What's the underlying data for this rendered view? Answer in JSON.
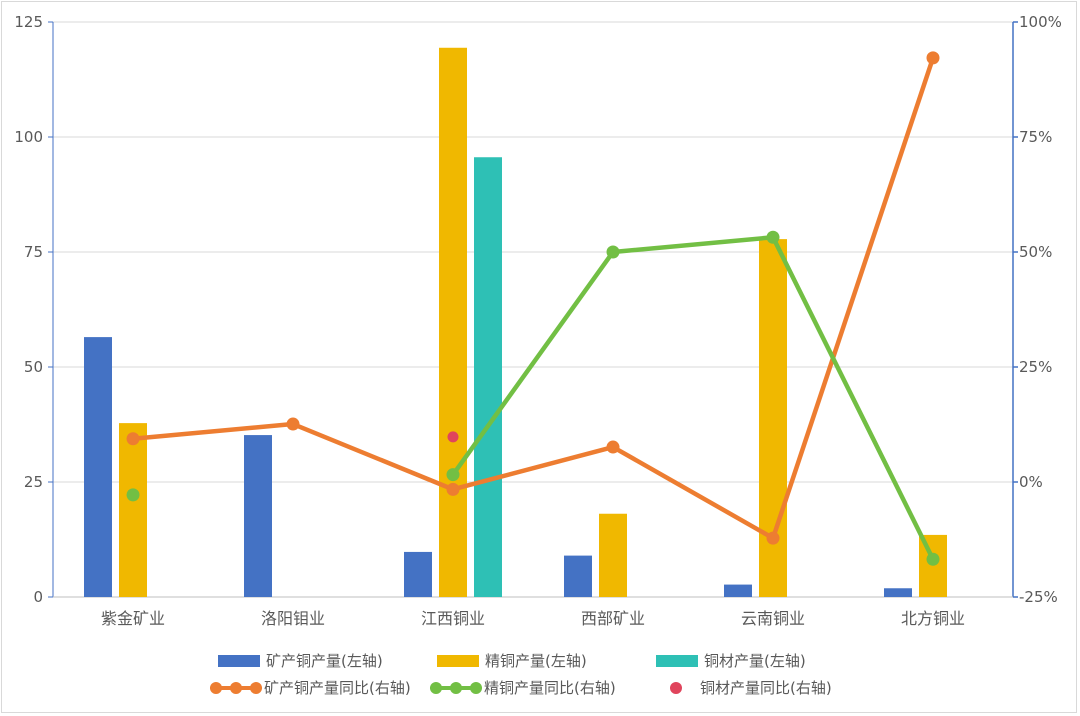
{
  "chart_data": {
    "type": "bar",
    "categories": [
      "紫金矿业",
      "洛阳钼业",
      "江西铜业",
      "西部矿业",
      "云南铜业",
      "北方铜业"
    ],
    "left_axis": {
      "ylim": [
        0,
        125
      ],
      "ticks": [
        "0",
        "25",
        "50",
        "75",
        "100",
        "125"
      ]
    },
    "right_axis": {
      "ylim": [
        -0.25,
        1.0
      ],
      "ticks": [
        "-25%",
        "0%",
        "25%",
        "50%",
        "75%",
        "100%"
      ]
    },
    "grid": true,
    "legend_position": "bottom",
    "series": [
      {
        "name": "矿产铜产量(左轴)",
        "type": "bar",
        "axis": "left",
        "color": "#4472c4",
        "values": [
          56.5,
          35.2,
          9.8,
          9.0,
          2.7,
          1.9
        ]
      },
      {
        "name": "精铜产量(左轴)",
        "type": "bar",
        "axis": "left",
        "color": "#f0b800",
        "values": [
          37.8,
          null,
          119.4,
          18.1,
          77.8,
          13.5
        ]
      },
      {
        "name": "铜材产量(左轴)",
        "type": "bar",
        "axis": "left",
        "color": "#2ec0b5",
        "values": [
          null,
          null,
          95.6,
          null,
          null,
          null
        ]
      },
      {
        "name": "矿产铜产量同比(右轴)",
        "type": "line",
        "axis": "right",
        "color": "#ed7d31",
        "values": [
          0.094,
          0.126,
          -0.016,
          0.076,
          -0.122,
          0.922
        ]
      },
      {
        "name": "精铜产量同比(右轴)",
        "type": "line",
        "axis": "right",
        "color": "#72bf44",
        "values": [
          -0.028,
          null,
          0.016,
          0.5,
          0.532,
          -0.168
        ]
      },
      {
        "name": "铜材产量同比(右轴)",
        "type": "scatter",
        "axis": "right",
        "color": "#e0445c",
        "values": [
          null,
          null,
          0.098,
          null,
          null,
          null
        ]
      }
    ]
  }
}
